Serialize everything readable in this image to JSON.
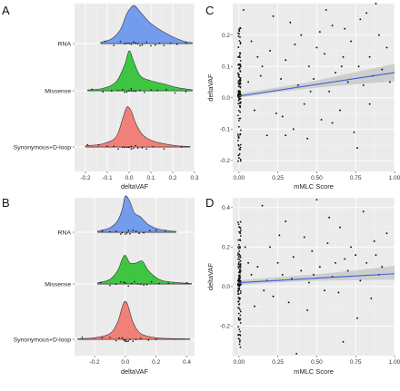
{
  "panels": {
    "A": {
      "letter": "A"
    },
    "B": {
      "letter": "B"
    },
    "C": {
      "letter": "C"
    },
    "D": {
      "letter": "D"
    }
  },
  "colors": {
    "RNA": "#6e98ee",
    "Missense": "#35c43a",
    "Synonymous+D-loop": "#f07a72",
    "panel_bg": "#ebebeb",
    "fit_line": "#3b5fcf",
    "ci_band": "#c9c9c9",
    "points": "#111111"
  },
  "chart_data": [
    {
      "id": "A",
      "type": "ridgeline",
      "xlabel": "deltaVAF",
      "ylabel": "",
      "categories": [
        "RNA",
        "Missense",
        "Synonymous+D-loop"
      ],
      "xlim": [
        -0.25,
        0.3
      ],
      "xticks": [
        -0.2,
        -0.1,
        0.0,
        0.1,
        0.2,
        0.3
      ],
      "xtick_labels": [
        "-0.2",
        "-0.1",
        "0.0",
        "0.1",
        "0.2",
        "0.3"
      ],
      "series": [
        {
          "name": "RNA",
          "range": [
            -0.13,
            0.29
          ],
          "density": [
            [
              -0.13,
              0.03
            ],
            [
              -0.08,
              0.12
            ],
            [
              -0.04,
              0.35
            ],
            [
              -0.01,
              0.75
            ],
            [
              0.02,
              0.95
            ],
            [
              0.05,
              0.8
            ],
            [
              0.09,
              0.55
            ],
            [
              0.14,
              0.35
            ],
            [
              0.2,
              0.17
            ],
            [
              0.25,
              0.06
            ],
            [
              0.29,
              0.02
            ]
          ],
          "points": [
            -0.11,
            -0.07,
            -0.04,
            -0.02,
            -0.01,
            0.0,
            0.01,
            0.02,
            0.03,
            0.04,
            0.05,
            0.06,
            0.08,
            0.1,
            0.12,
            0.14,
            0.16,
            0.19,
            0.22,
            0.26
          ]
        },
        {
          "name": "Missense",
          "range": [
            -0.19,
            0.29
          ],
          "density": [
            [
              -0.19,
              0.02
            ],
            [
              -0.12,
              0.06
            ],
            [
              -0.06,
              0.22
            ],
            [
              -0.02,
              0.65
            ],
            [
              0.0,
              1.0
            ],
            [
              0.02,
              0.75
            ],
            [
              0.05,
              0.38
            ],
            [
              0.1,
              0.25
            ],
            [
              0.16,
              0.17
            ],
            [
              0.22,
              0.08
            ],
            [
              0.29,
              0.02
            ]
          ],
          "points": [
            -0.17,
            -0.12,
            -0.08,
            -0.05,
            -0.03,
            -0.02,
            -0.01,
            0.0,
            0.0,
            0.01,
            0.01,
            0.02,
            0.03,
            0.05,
            0.07,
            0.1,
            0.13,
            0.17,
            0.21,
            0.26
          ]
        },
        {
          "name": "Synonymous+D-loop",
          "range": [
            -0.2,
            0.28
          ],
          "density": [
            [
              -0.2,
              0.03
            ],
            [
              -0.12,
              0.08
            ],
            [
              -0.06,
              0.25
            ],
            [
              -0.03,
              0.7
            ],
            [
              -0.01,
              1.0
            ],
            [
              0.01,
              0.9
            ],
            [
              0.03,
              0.6
            ],
            [
              0.06,
              0.32
            ],
            [
              0.1,
              0.17
            ],
            [
              0.16,
              0.08
            ],
            [
              0.22,
              0.03
            ],
            [
              0.28,
              0.01
            ]
          ],
          "points": [
            -0.19,
            -0.14,
            -0.1,
            -0.07,
            -0.05,
            -0.03,
            -0.02,
            -0.01,
            0.0,
            0.0,
            0.01,
            0.01,
            0.02,
            0.03,
            0.04,
            0.06,
            0.08,
            0.11,
            0.16,
            0.24
          ]
        }
      ]
    },
    {
      "id": "B",
      "type": "ridgeline",
      "xlabel": "deltaVAF",
      "ylabel": "",
      "categories": [
        "RNA",
        "Missense",
        "Synonymous+D-loop"
      ],
      "xlim": [
        -0.33,
        0.45
      ],
      "xticks": [
        -0.2,
        0.0,
        0.2,
        0.4
      ],
      "xtick_labels": [
        "-0.2",
        "0.0",
        "0.2",
        "0.4"
      ],
      "series": [
        {
          "name": "RNA",
          "range": [
            -0.18,
            0.33
          ],
          "density": [
            [
              -0.18,
              0.03
            ],
            [
              -0.1,
              0.12
            ],
            [
              -0.05,
              0.3
            ],
            [
              -0.02,
              0.6
            ],
            [
              0.0,
              0.95
            ],
            [
              0.03,
              0.8
            ],
            [
              0.06,
              0.5
            ],
            [
              0.1,
              0.4
            ],
            [
              0.15,
              0.2
            ],
            [
              0.22,
              0.08
            ],
            [
              0.33,
              0.02
            ]
          ],
          "points": [
            -0.15,
            -0.1,
            -0.06,
            -0.03,
            -0.02,
            0.0,
            0.01,
            0.02,
            0.03,
            0.05,
            0.07,
            0.09,
            0.12,
            0.16,
            0.2,
            0.26
          ]
        },
        {
          "name": "Missense",
          "range": [
            -0.18,
            0.43
          ],
          "density": [
            [
              -0.18,
              0.03
            ],
            [
              -0.1,
              0.12
            ],
            [
              -0.05,
              0.35
            ],
            [
              -0.02,
              0.65
            ],
            [
              0.0,
              0.75
            ],
            [
              0.03,
              0.55
            ],
            [
              0.07,
              0.55
            ],
            [
              0.11,
              0.6
            ],
            [
              0.15,
              0.35
            ],
            [
              0.22,
              0.12
            ],
            [
              0.3,
              0.05
            ],
            [
              0.43,
              0.01
            ]
          ],
          "points": [
            -0.16,
            -0.1,
            -0.06,
            -0.03,
            -0.01,
            0.0,
            0.02,
            0.04,
            0.06,
            0.08,
            0.1,
            0.12,
            0.14,
            0.17,
            0.22,
            0.28,
            0.4
          ]
        },
        {
          "name": "Synonymous+D-loop",
          "range": [
            -0.31,
            0.42
          ],
          "density": [
            [
              -0.31,
              0.01
            ],
            [
              -0.2,
              0.04
            ],
            [
              -0.1,
              0.15
            ],
            [
              -0.05,
              0.45
            ],
            [
              -0.02,
              0.85
            ],
            [
              0.0,
              1.0
            ],
            [
              0.02,
              0.85
            ],
            [
              0.05,
              0.45
            ],
            [
              0.1,
              0.15
            ],
            [
              0.2,
              0.04
            ],
            [
              0.3,
              0.02
            ],
            [
              0.42,
              0.01
            ]
          ],
          "points": [
            -0.28,
            -0.15,
            -0.1,
            -0.06,
            -0.04,
            -0.02,
            -0.01,
            0.0,
            0.0,
            0.01,
            0.02,
            0.03,
            0.05,
            0.07,
            0.1,
            0.15,
            0.2
          ]
        }
      ]
    },
    {
      "id": "C",
      "type": "scatter",
      "xlabel": "mMLC Score",
      "ylabel": "deltaVAF",
      "xlim": [
        -0.04,
        1.0
      ],
      "ylim": [
        -0.235,
        0.3
      ],
      "xticks": [
        0.0,
        0.25,
        0.5,
        0.75,
        1.0
      ],
      "xtick_labels": [
        "0.00",
        "0.25",
        "0.50",
        "0.75",
        "1.00"
      ],
      "yticks": [
        -0.2,
        -0.1,
        0.0,
        0.1,
        0.2
      ],
      "ytick_labels": [
        "-0.2",
        "-0.1",
        "0.0",
        "0.1",
        "0.2"
      ],
      "fit": {
        "intercept": 0.005,
        "slope": 0.075
      },
      "ci": [
        [
          0.0,
          0.0,
          0.013
        ],
        [
          0.25,
          0.018,
          0.033
        ],
        [
          0.5,
          0.032,
          0.055
        ],
        [
          0.75,
          0.043,
          0.082
        ],
        [
          1.0,
          0.052,
          0.108
        ]
      ],
      "points": [
        [
          0.03,
          0.28
        ],
        [
          0.08,
          0.18
        ],
        [
          0.12,
          0.13
        ],
        [
          0.15,
          0.1
        ],
        [
          0.2,
          0.15
        ],
        [
          0.22,
          0.26
        ],
        [
          0.24,
          -0.05
        ],
        [
          0.27,
          0.06
        ],
        [
          0.3,
          0.12
        ],
        [
          0.33,
          0.24
        ],
        [
          0.35,
          -0.1
        ],
        [
          0.38,
          0.04
        ],
        [
          0.4,
          0.2
        ],
        [
          0.42,
          -0.02
        ],
        [
          0.45,
          0.1
        ],
        [
          0.48,
          0.06
        ],
        [
          0.5,
          0.16
        ],
        [
          0.53,
          -0.07
        ],
        [
          0.55,
          0.14
        ],
        [
          0.58,
          0.02
        ],
        [
          0.6,
          0.23
        ],
        [
          0.62,
          0.08
        ],
        [
          0.65,
          -0.04
        ],
        [
          0.67,
          0.13
        ],
        [
          0.7,
          0.05
        ],
        [
          0.72,
          0.18
        ],
        [
          0.74,
          -0.11
        ],
        [
          0.77,
          0.1
        ],
        [
          0.8,
          0.04
        ],
        [
          0.82,
          0.27
        ],
        [
          0.84,
          0.13
        ],
        [
          0.86,
          0.07
        ],
        [
          0.88,
          0.3
        ],
        [
          0.9,
          0.2
        ],
        [
          0.92,
          0.09
        ],
        [
          0.95,
          0.16
        ],
        [
          0.97,
          0.05
        ],
        [
          0.1,
          -0.04
        ],
        [
          0.18,
          -0.12
        ],
        [
          0.28,
          -0.06
        ],
        [
          0.36,
          0.17
        ],
        [
          0.44,
          -0.13
        ],
        [
          0.52,
          0.21
        ],
        [
          0.6,
          -0.08
        ],
        [
          0.68,
          0.22
        ],
        [
          0.76,
          -0.16
        ],
        [
          0.84,
          -0.02
        ],
        [
          0.06,
          0.05
        ],
        [
          0.14,
          0.07
        ],
        [
          0.3,
          -0.12
        ],
        [
          0.46,
          0.02
        ],
        [
          0.56,
          0.28
        ],
        [
          0.66,
          0.1
        ],
        [
          0.78,
          0.25
        ]
      ]
    },
    {
      "id": "D",
      "type": "scatter",
      "xlabel": "mMLC Score",
      "ylabel": "deltaVAF",
      "xlim": [
        -0.04,
        1.0
      ],
      "ylim": [
        -0.35,
        0.45
      ],
      "xticks": [
        0.0,
        0.25,
        0.5,
        0.75,
        1.0
      ],
      "xtick_labels": [
        "0.00",
        "0.25",
        "0.50",
        "0.75",
        "1.00"
      ],
      "yticks": [
        -0.2,
        0.0,
        0.2,
        0.4
      ],
      "ytick_labels": [
        "-0.2",
        "0.0",
        "0.2",
        "0.4"
      ],
      "fit": {
        "intercept": 0.02,
        "slope": 0.045
      },
      "ci": [
        [
          0.0,
          0.008,
          0.032
        ],
        [
          0.25,
          0.022,
          0.048
        ],
        [
          0.5,
          0.03,
          0.062
        ],
        [
          0.75,
          0.033,
          0.082
        ],
        [
          1.0,
          0.035,
          0.105
        ]
      ],
      "points": [
        [
          0.04,
          0.2
        ],
        [
          0.08,
          0.06
        ],
        [
          0.12,
          0.1
        ],
        [
          0.15,
          0.41
        ],
        [
          0.18,
          0.03
        ],
        [
          0.2,
          0.2
        ],
        [
          0.22,
          -0.05
        ],
        [
          0.25,
          0.12
        ],
        [
          0.28,
          0.06
        ],
        [
          0.3,
          0.33
        ],
        [
          0.32,
          -0.08
        ],
        [
          0.35,
          0.15
        ],
        [
          0.37,
          -0.34
        ],
        [
          0.4,
          0.08
        ],
        [
          0.42,
          0.25
        ],
        [
          0.45,
          0.02
        ],
        [
          0.47,
          0.18
        ],
        [
          0.5,
          0.44
        ],
        [
          0.52,
          0.1
        ],
        [
          0.55,
          -0.02
        ],
        [
          0.57,
          0.22
        ],
        [
          0.6,
          0.05
        ],
        [
          0.62,
          0.12
        ],
        [
          0.65,
          0.3
        ],
        [
          0.67,
          -0.28
        ],
        [
          0.7,
          0.08
        ],
        [
          0.72,
          0.2
        ],
        [
          0.75,
          0.16
        ],
        [
          0.78,
          0.03
        ],
        [
          0.8,
          0.38
        ],
        [
          0.82,
          0.12
        ],
        [
          0.85,
          -0.06
        ],
        [
          0.87,
          0.23
        ],
        [
          0.9,
          0.06
        ],
        [
          0.92,
          0.1
        ],
        [
          0.95,
          0.27
        ],
        [
          0.1,
          -0.1
        ],
        [
          0.26,
          0.26
        ],
        [
          0.34,
          0.04
        ],
        [
          0.44,
          -0.12
        ],
        [
          0.58,
          0.35
        ],
        [
          0.68,
          0.14
        ],
        [
          0.76,
          -0.16
        ],
        [
          0.88,
          0.16
        ],
        [
          0.06,
          0.12
        ],
        [
          0.16,
          -0.02
        ],
        [
          0.48,
          0.06
        ],
        [
          0.64,
          -0.03
        ]
      ]
    }
  ]
}
